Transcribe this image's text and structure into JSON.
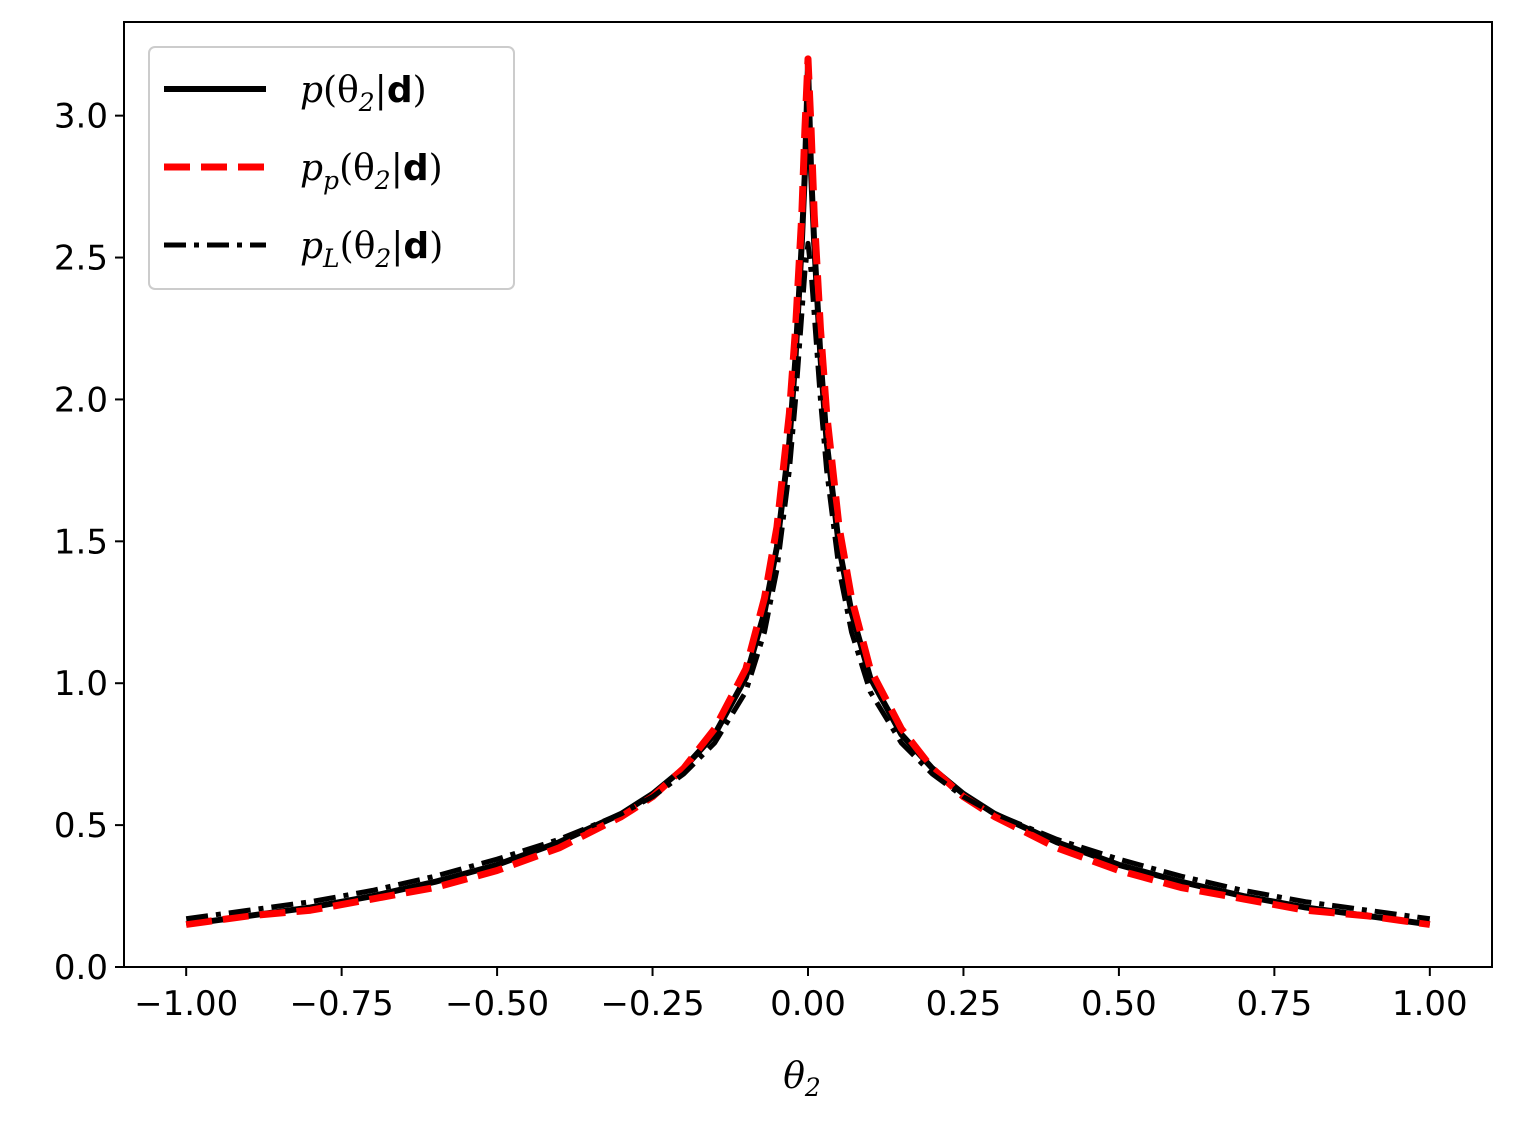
{
  "chart_data": {
    "type": "line",
    "title": "",
    "xlabel": "θ",
    "xlabel_sub": "2",
    "ylabel": "",
    "xlim": [
      -1.1,
      1.1
    ],
    "ylim": [
      0.0,
      3.33
    ],
    "xticks": [
      -1.0,
      -0.75,
      -0.5,
      -0.25,
      0.0,
      0.25,
      0.5,
      0.75,
      1.0
    ],
    "xtick_labels": [
      "−1.00",
      "−0.75",
      "−0.50",
      "−0.25",
      "0.00",
      "0.25",
      "0.50",
      "0.75",
      "1.00"
    ],
    "yticks": [
      0.0,
      0.5,
      1.0,
      1.5,
      2.0,
      2.5,
      3.0
    ],
    "ytick_labels": [
      "0.0",
      "0.5",
      "1.0",
      "1.5",
      "2.0",
      "2.5",
      "3.0"
    ],
    "grid": false,
    "legend_position": "top-left",
    "series": [
      {
        "name_main": "p",
        "name_sub": "",
        "name_arg": "(θ",
        "name_arg_sub": "2",
        "name_bar": "|",
        "name_bold": "d",
        "name_close": ")",
        "style": "solid",
        "color": "#000000",
        "x": [
          -1.0,
          -0.9,
          -0.8,
          -0.7,
          -0.6,
          -0.5,
          -0.4,
          -0.3,
          -0.25,
          -0.2,
          -0.15,
          -0.1,
          -0.07,
          -0.05,
          -0.03,
          -0.02,
          -0.01,
          -0.005,
          0.0,
          0.005,
          0.01,
          0.02,
          0.03,
          0.05,
          0.07,
          0.1,
          0.15,
          0.2,
          0.25,
          0.3,
          0.4,
          0.5,
          0.6,
          0.7,
          0.8,
          0.9,
          1.0
        ],
        "y": [
          0.15,
          0.18,
          0.21,
          0.25,
          0.3,
          0.36,
          0.44,
          0.54,
          0.61,
          0.7,
          0.82,
          1.02,
          1.25,
          1.48,
          1.85,
          2.15,
          2.55,
          2.8,
          3.18,
          2.8,
          2.55,
          2.15,
          1.85,
          1.48,
          1.25,
          1.02,
          0.82,
          0.7,
          0.61,
          0.54,
          0.44,
          0.36,
          0.3,
          0.25,
          0.21,
          0.18,
          0.15
        ]
      },
      {
        "name_main": "p",
        "name_sub": "p",
        "name_arg": "(θ",
        "name_arg_sub": "2",
        "name_bar": "|",
        "name_bold": "d",
        "name_close": ")",
        "style": "dashed",
        "color": "#ff0000",
        "x": [
          -1.0,
          -0.9,
          -0.8,
          -0.7,
          -0.6,
          -0.5,
          -0.4,
          -0.3,
          -0.25,
          -0.2,
          -0.15,
          -0.1,
          -0.07,
          -0.05,
          -0.03,
          -0.02,
          -0.01,
          -0.005,
          0.0,
          0.005,
          0.01,
          0.02,
          0.03,
          0.05,
          0.07,
          0.1,
          0.15,
          0.2,
          0.25,
          0.3,
          0.4,
          0.5,
          0.6,
          0.7,
          0.8,
          0.9,
          1.0
        ],
        "y": [
          0.15,
          0.18,
          0.2,
          0.24,
          0.28,
          0.34,
          0.42,
          0.53,
          0.6,
          0.7,
          0.84,
          1.05,
          1.3,
          1.55,
          1.95,
          2.25,
          2.65,
          2.95,
          3.2,
          2.95,
          2.65,
          2.25,
          1.95,
          1.55,
          1.3,
          1.05,
          0.84,
          0.7,
          0.6,
          0.53,
          0.42,
          0.34,
          0.28,
          0.24,
          0.2,
          0.18,
          0.15
        ]
      },
      {
        "name_main": "p",
        "name_sub": "L",
        "name_arg": "(θ",
        "name_arg_sub": "2",
        "name_bar": "|",
        "name_bold": "d",
        "name_close": ")",
        "style": "dashdot",
        "color": "#000000",
        "x": [
          -1.0,
          -0.9,
          -0.8,
          -0.7,
          -0.6,
          -0.5,
          -0.4,
          -0.3,
          -0.25,
          -0.2,
          -0.15,
          -0.1,
          -0.07,
          -0.05,
          -0.03,
          -0.02,
          -0.01,
          -0.005,
          0.0,
          0.005,
          0.01,
          0.02,
          0.03,
          0.05,
          0.07,
          0.1,
          0.15,
          0.2,
          0.25,
          0.3,
          0.4,
          0.5,
          0.6,
          0.7,
          0.8,
          0.9,
          1.0
        ],
        "y": [
          0.17,
          0.2,
          0.23,
          0.27,
          0.32,
          0.38,
          0.45,
          0.54,
          0.6,
          0.68,
          0.79,
          0.97,
          1.18,
          1.4,
          1.75,
          2.0,
          2.3,
          2.45,
          2.55,
          2.45,
          2.3,
          2.0,
          1.75,
          1.4,
          1.18,
          0.97,
          0.79,
          0.68,
          0.6,
          0.54,
          0.45,
          0.38,
          0.32,
          0.27,
          0.23,
          0.2,
          0.17
        ]
      }
    ]
  }
}
